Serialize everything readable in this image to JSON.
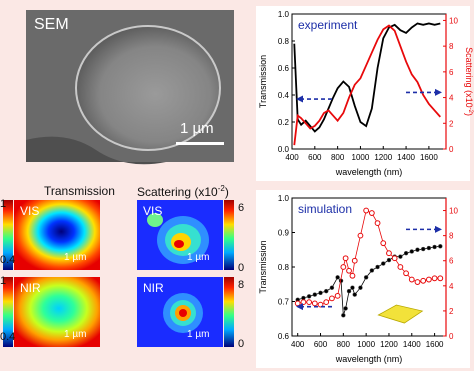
{
  "sem": {
    "label": "SEM",
    "scale": "1 µm"
  },
  "maps": {
    "header_left": "Transmission",
    "header_right": "Scattering (x10",
    "header_right_exp": "-2",
    "header_right_close": ")",
    "vis": "VIS",
    "nir": "NIR",
    "scale": "1 µm",
    "trans_scale_top": {
      "max": "1",
      "min": "0.4"
    },
    "trans_scale_bottom": {
      "max": "1",
      "min": "0.4"
    },
    "scat_scale_top": {
      "max": "6",
      "min": "0"
    },
    "scat_scale_bottom": {
      "max": "8",
      "min": "0"
    }
  },
  "chart_data": [
    {
      "type": "line",
      "title": "experiment",
      "xlabel": "wavelength (nm)",
      "ylabel": "Transmission",
      "y2label": "Scattering (x10",
      "y2label_exp": "-2",
      "y2label_close": ")",
      "xlim": [
        400,
        1750
      ],
      "ylim": [
        0.0,
        1.0
      ],
      "y2lim": [
        0,
        10.5
      ],
      "xticks": [
        "400",
        "600",
        "800",
        "1000",
        "1200",
        "1400",
        "1600"
      ],
      "yticks": [
        "0.0",
        "0.2",
        "0.4",
        "0.6",
        "0.8",
        "1.0"
      ],
      "y2ticks": [
        "0",
        "2",
        "4",
        "6",
        "8",
        "10"
      ],
      "series": [
        {
          "axis": "left",
          "color": "#000000",
          "x": [
            420,
            450,
            480,
            520,
            560,
            600,
            640,
            680,
            720,
            760,
            800,
            850,
            900,
            950,
            1000,
            1050,
            1100,
            1150,
            1200,
            1250,
            1300,
            1350,
            1400,
            1450,
            1500,
            1550,
            1600,
            1650,
            1700
          ],
          "y": [
            0.78,
            0.22,
            0.18,
            0.21,
            0.17,
            0.13,
            0.16,
            0.22,
            0.3,
            0.38,
            0.45,
            0.5,
            0.46,
            0.32,
            0.2,
            0.17,
            0.3,
            0.6,
            0.82,
            0.9,
            0.92,
            0.88,
            0.86,
            0.9,
            0.93,
            0.92,
            0.93,
            0.92,
            0.93
          ]
        },
        {
          "axis": "right",
          "color": "#e8090b",
          "x": [
            420,
            450,
            480,
            520,
            560,
            600,
            640,
            680,
            720,
            760,
            800,
            850,
            900,
            950,
            1000,
            1050,
            1100,
            1150,
            1200,
            1250,
            1300,
            1350,
            1400,
            1450,
            1500,
            1550,
            1600,
            1650,
            1700
          ],
          "y": [
            0.3,
            2.6,
            2.4,
            2.0,
            1.6,
            1.8,
            2.2,
            2.8,
            3.0,
            2.6,
            2.2,
            2.8,
            4.0,
            5.0,
            5.5,
            6.5,
            7.5,
            8.5,
            9.3,
            9.6,
            9.2,
            8.0,
            6.8,
            5.8,
            5.2,
            4.2,
            3.5,
            3.0,
            2.5
          ]
        }
      ],
      "arrows": [
        "left",
        "right"
      ]
    },
    {
      "type": "scatter",
      "title": "simulation",
      "xlabel": "wavelength (nm)",
      "ylabel": "Transmission",
      "xlim": [
        350,
        1700
      ],
      "ylim": [
        0.6,
        1.0
      ],
      "y2lim": [
        0,
        11
      ],
      "xticks": [
        "400",
        "600",
        "800",
        "1000",
        "1200",
        "1400",
        "1600"
      ],
      "yticks": [
        "0.6",
        "0.7",
        "0.8",
        "0.9",
        "1.0"
      ],
      "y2ticks": [
        "0",
        "2",
        "4",
        "6",
        "8",
        "10"
      ],
      "series": [
        {
          "axis": "left",
          "color": "#000000",
          "x": [
            400,
            450,
            500,
            550,
            600,
            650,
            700,
            750,
            780,
            800,
            820,
            850,
            880,
            900,
            950,
            1000,
            1050,
            1100,
            1150,
            1200,
            1250,
            1300,
            1350,
            1400,
            1450,
            1500,
            1550,
            1600,
            1650
          ],
          "y": [
            0.705,
            0.71,
            0.715,
            0.72,
            0.725,
            0.73,
            0.74,
            0.77,
            0.76,
            0.66,
            0.68,
            0.73,
            0.74,
            0.72,
            0.74,
            0.77,
            0.79,
            0.8,
            0.81,
            0.82,
            0.83,
            0.83,
            0.84,
            0.845,
            0.85,
            0.852,
            0.855,
            0.858,
            0.86
          ]
        },
        {
          "axis": "right",
          "color": "#e8090b",
          "x": [
            400,
            450,
            500,
            550,
            600,
            650,
            700,
            750,
            800,
            820,
            850,
            880,
            900,
            950,
            1000,
            1050,
            1100,
            1150,
            1200,
            1250,
            1300,
            1350,
            1400,
            1450,
            1500,
            1550,
            1600,
            1650
          ],
          "y": [
            2.6,
            2.7,
            2.7,
            2.6,
            2.5,
            2.7,
            3.0,
            3.2,
            5.5,
            6.2,
            5.2,
            4.8,
            6.0,
            8.0,
            10.0,
            9.8,
            9.0,
            7.4,
            6.6,
            6.2,
            5.5,
            5.0,
            4.5,
            4.3,
            4.4,
            4.5,
            4.6,
            4.6
          ]
        }
      ],
      "arrows": [
        "left",
        "right"
      ]
    }
  ]
}
